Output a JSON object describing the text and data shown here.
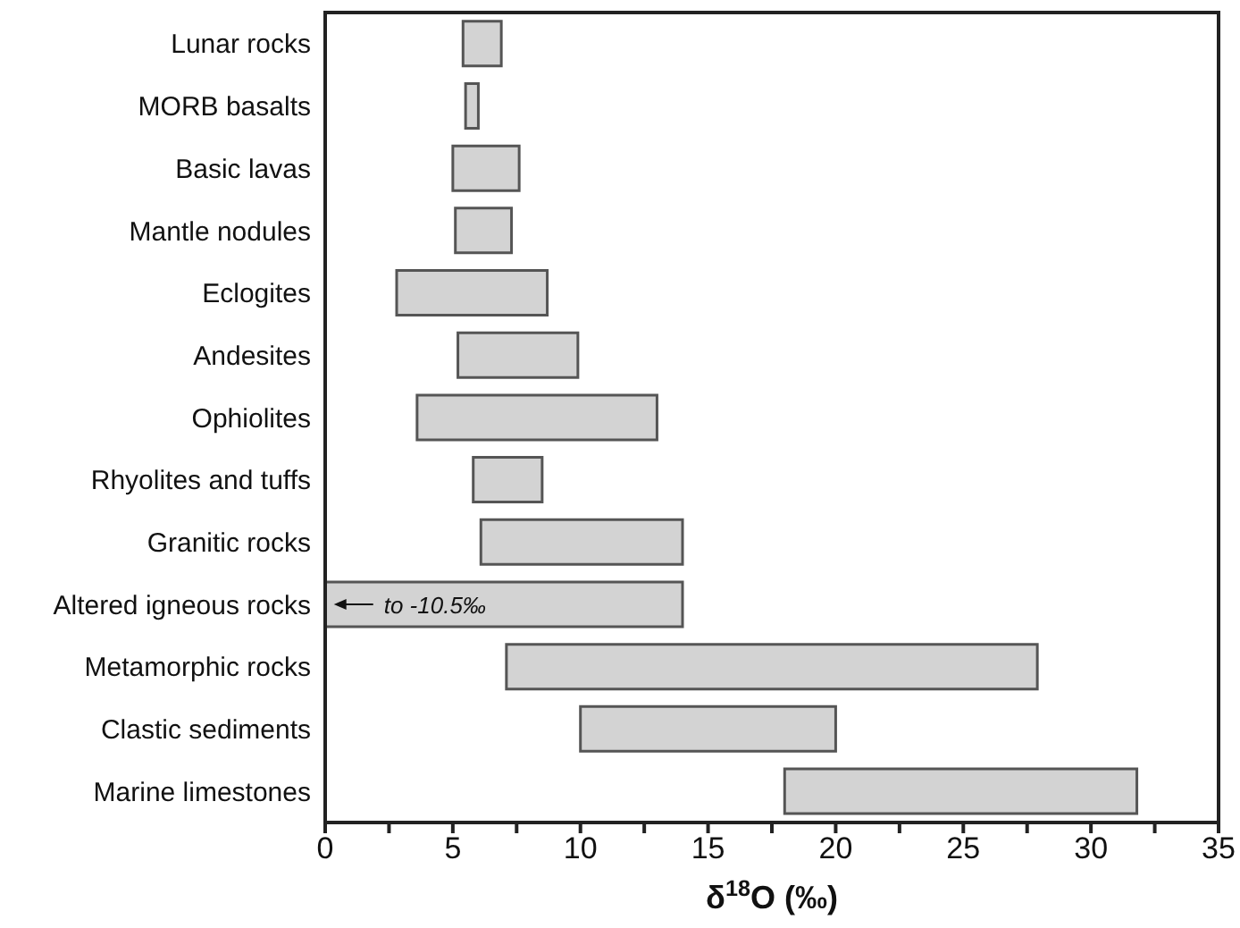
{
  "chart_data": {
    "type": "bar",
    "orientation": "horizontal",
    "xlabel": "δ$^{18}$O (‰)",
    "categories": [
      "Lunar rocks",
      "MORB basalts",
      "Basic lavas",
      "Mantle nodules",
      "Eclogites",
      "Andesites",
      "Ophiolites",
      "Rhyolites and tuffs",
      "Granitic rocks",
      "Altered igneous rocks",
      "Metamorphic rocks",
      "Clastic sediments",
      "Marine limestones"
    ],
    "base": [
      5.4,
      5.5,
      5.0,
      5.1,
      2.8,
      5.2,
      3.6,
      5.8,
      6.1,
      0,
      7.1,
      10.0,
      18.0
    ],
    "values": [
      1.5,
      0.5,
      2.6,
      2.2,
      5.9,
      4.7,
      9.4,
      2.7,
      7.9,
      14.0,
      20.8,
      10.0,
      13.8
    ],
    "color": "#d3d3d3",
    "xlim": [
      0,
      35
    ],
    "xticks": [
      0,
      {
        "value": 2.5,
        "label": null
      },
      5,
      {
        "value": 7.5,
        "label": null
      },
      10,
      {
        "value": 12.5,
        "label": null
      },
      15,
      {
        "value": 17.5,
        "label": null
      },
      20,
      {
        "value": 22.5,
        "label": null
      },
      25,
      {
        "value": 27.5,
        "label": null
      },
      30,
      {
        "value": 32.5,
        "label": null
      },
      35
    ],
    "annotations": [
      {
        "text": "to -10.5‰",
        "x": 2.3,
        "y": "Altered igneous rocks"
      }
    ]
  }
}
